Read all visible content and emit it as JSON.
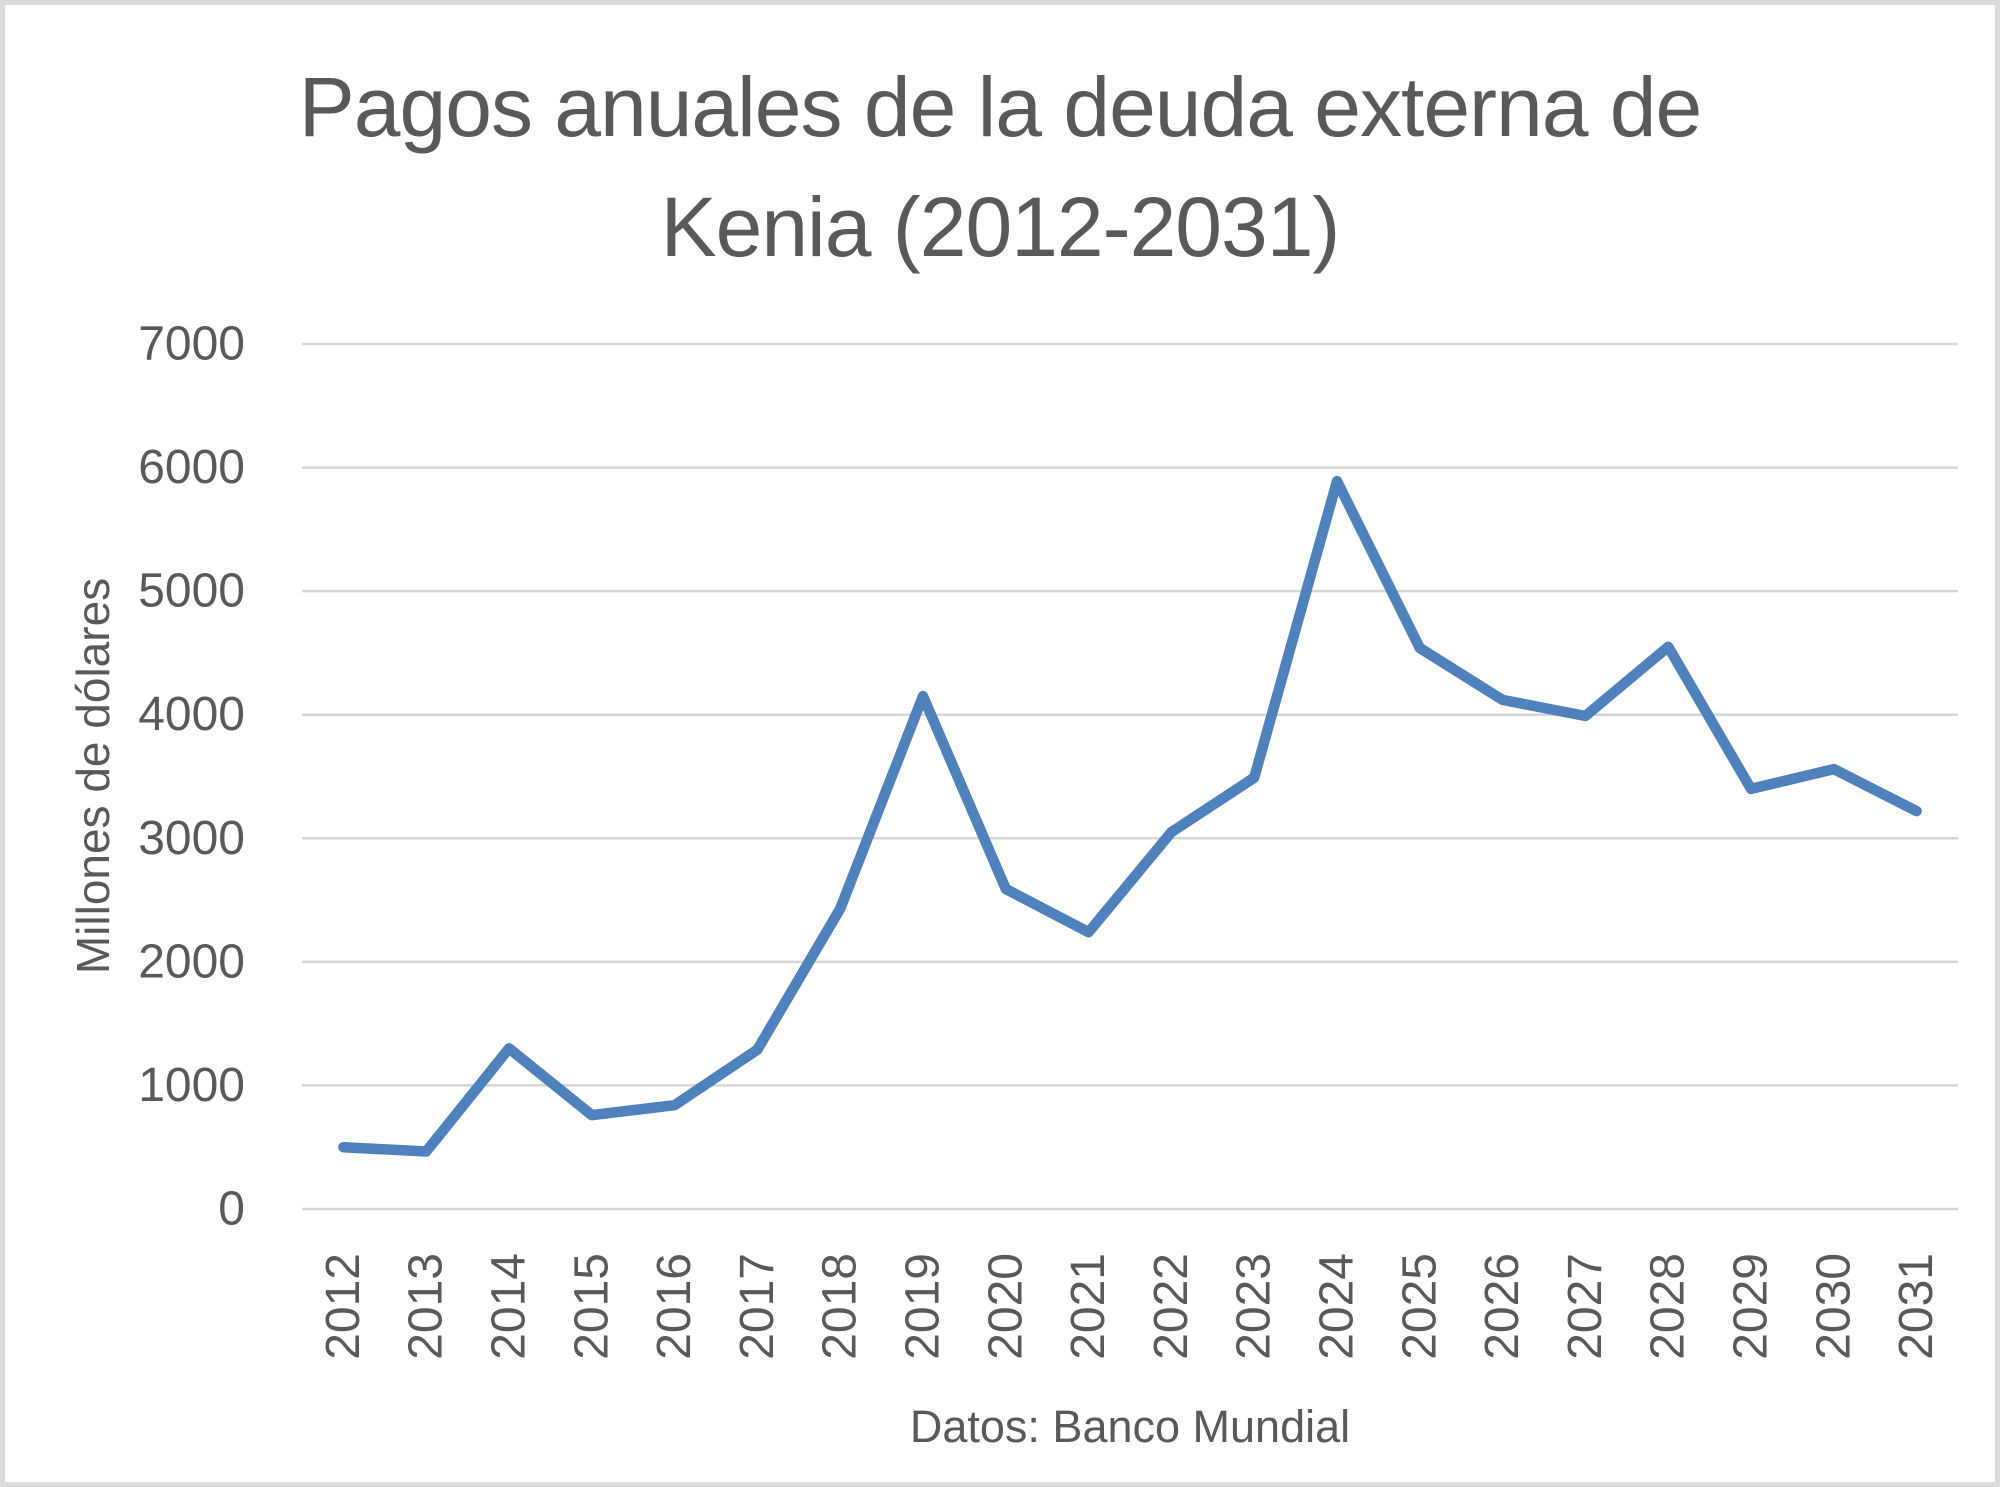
{
  "page": {
    "background": "#FFFFFF",
    "border_color": "#DBDBDB"
  },
  "chart_data": {
    "type": "line",
    "title": "Pagos anuales de la deuda externa de Kenia (2012-2031)",
    "title_lines": [
      "Pagos anuales de la deuda externa de",
      "Kenia (2012-2031)"
    ],
    "ylabel": "Millones de dólares",
    "xlabel": "",
    "caption": "Datos: Banco Mundial",
    "categories": [
      "2012",
      "2013",
      "2014",
      "2015",
      "2016",
      "2017",
      "2018",
      "2019",
      "2020",
      "2021",
      "2022",
      "2023",
      "2024",
      "2025",
      "2026",
      "2027",
      "2028",
      "2029",
      "2030",
      "2031"
    ],
    "values": [
      500,
      465,
      1300,
      760,
      840,
      1290,
      2430,
      4150,
      2590,
      2240,
      3050,
      3490,
      5890,
      4540,
      4120,
      3990,
      4550,
      3400,
      3560,
      3220
    ],
    "ylim": [
      0,
      7000
    ],
    "yticks": [
      0,
      1000,
      2000,
      3000,
      4000,
      5000,
      6000,
      7000
    ],
    "grid": "horizontal",
    "legend": "none",
    "x_tick_rotation_degrees": 90,
    "line_color": "#4F81BD",
    "gridline_color": "#D6D6D6",
    "text_color": "#595959"
  }
}
